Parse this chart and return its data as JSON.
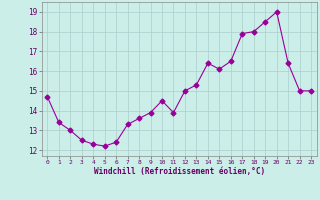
{
  "x": [
    0,
    1,
    2,
    3,
    4,
    5,
    6,
    7,
    8,
    9,
    10,
    11,
    12,
    13,
    14,
    15,
    16,
    17,
    18,
    19,
    20,
    21,
    22,
    23
  ],
  "y": [
    14.7,
    13.4,
    13.0,
    12.5,
    12.3,
    12.2,
    12.4,
    13.3,
    13.6,
    13.9,
    14.5,
    13.9,
    15.0,
    15.3,
    16.4,
    16.1,
    16.5,
    17.9,
    18.0,
    18.5,
    19.0,
    16.4,
    15.0,
    15.0
  ],
  "line_color": "#990099",
  "marker": "D",
  "marker_size": 2.5,
  "bg_color": "#cceee8",
  "grid_color": "#aacccc",
  "xlabel": "Windchill (Refroidissement éolien,°C)",
  "xlabel_color": "#660066",
  "tick_color": "#660066",
  "ylim": [
    11.7,
    19.5
  ],
  "xlim": [
    -0.5,
    23.5
  ],
  "yticks": [
    12,
    13,
    14,
    15,
    16,
    17,
    18,
    19
  ],
  "xticks": [
    0,
    1,
    2,
    3,
    4,
    5,
    6,
    7,
    8,
    9,
    10,
    11,
    12,
    13,
    14,
    15,
    16,
    17,
    18,
    19,
    20,
    21,
    22,
    23
  ]
}
